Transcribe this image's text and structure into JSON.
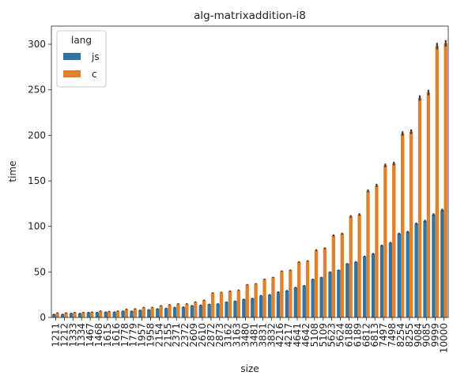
{
  "chart_data": {
    "type": "bar",
    "title": "alg-matrixaddition-i8",
    "xlabel": "size",
    "ylabel": "time",
    "ylim": [
      0,
      320
    ],
    "yticks": [
      0,
      50,
      100,
      150,
      200,
      250,
      300
    ],
    "grid": false,
    "legend": {
      "title": "lang",
      "placement": "top-left"
    },
    "error_bars": true,
    "categories": [
      "1211",
      "1212",
      "1333",
      "1334",
      "1467",
      "1468",
      "1615",
      "1616",
      "1778",
      "1779",
      "1957",
      "1958",
      "2154",
      "2155",
      "2371",
      "2372",
      "2609",
      "2610",
      "2872",
      "2873",
      "3162",
      "3163",
      "3480",
      "3481",
      "3831",
      "3832",
      "4216",
      "4217",
      "4641",
      "4642",
      "5108",
      "5109",
      "5623",
      "5624",
      "6188",
      "6189",
      "6812",
      "6813",
      "7497",
      "7498",
      "8254",
      "8255",
      "9084",
      "9085",
      "9999",
      "10000"
    ],
    "series": [
      {
        "name": "js",
        "color": "#3274a1",
        "values": [
          3.5,
          3.5,
          4.5,
          4.5,
          5.5,
          5.5,
          6,
          6,
          7,
          7,
          8,
          8.5,
          9.5,
          10,
          11,
          11.5,
          13,
          13.5,
          14.5,
          15,
          17,
          18,
          20,
          21,
          24,
          25,
          28,
          29.5,
          33,
          35,
          42,
          44,
          50,
          52,
          59,
          61,
          67,
          70,
          79,
          82,
          92,
          94,
          103,
          106,
          113,
          118
        ]
      },
      {
        "name": "c",
        "color": "#e1812c",
        "values": [
          5,
          5,
          5.5,
          5.5,
          6,
          7,
          6.5,
          7,
          9,
          9.5,
          11,
          11,
          13,
          14,
          15,
          15,
          17,
          19,
          27,
          27.5,
          29,
          30,
          36,
          37,
          42,
          44,
          51,
          52,
          61,
          62,
          74,
          76,
          90,
          92,
          111,
          113,
          139,
          145,
          167,
          169,
          202,
          204,
          241,
          247,
          298,
          301
        ]
      }
    ]
  }
}
